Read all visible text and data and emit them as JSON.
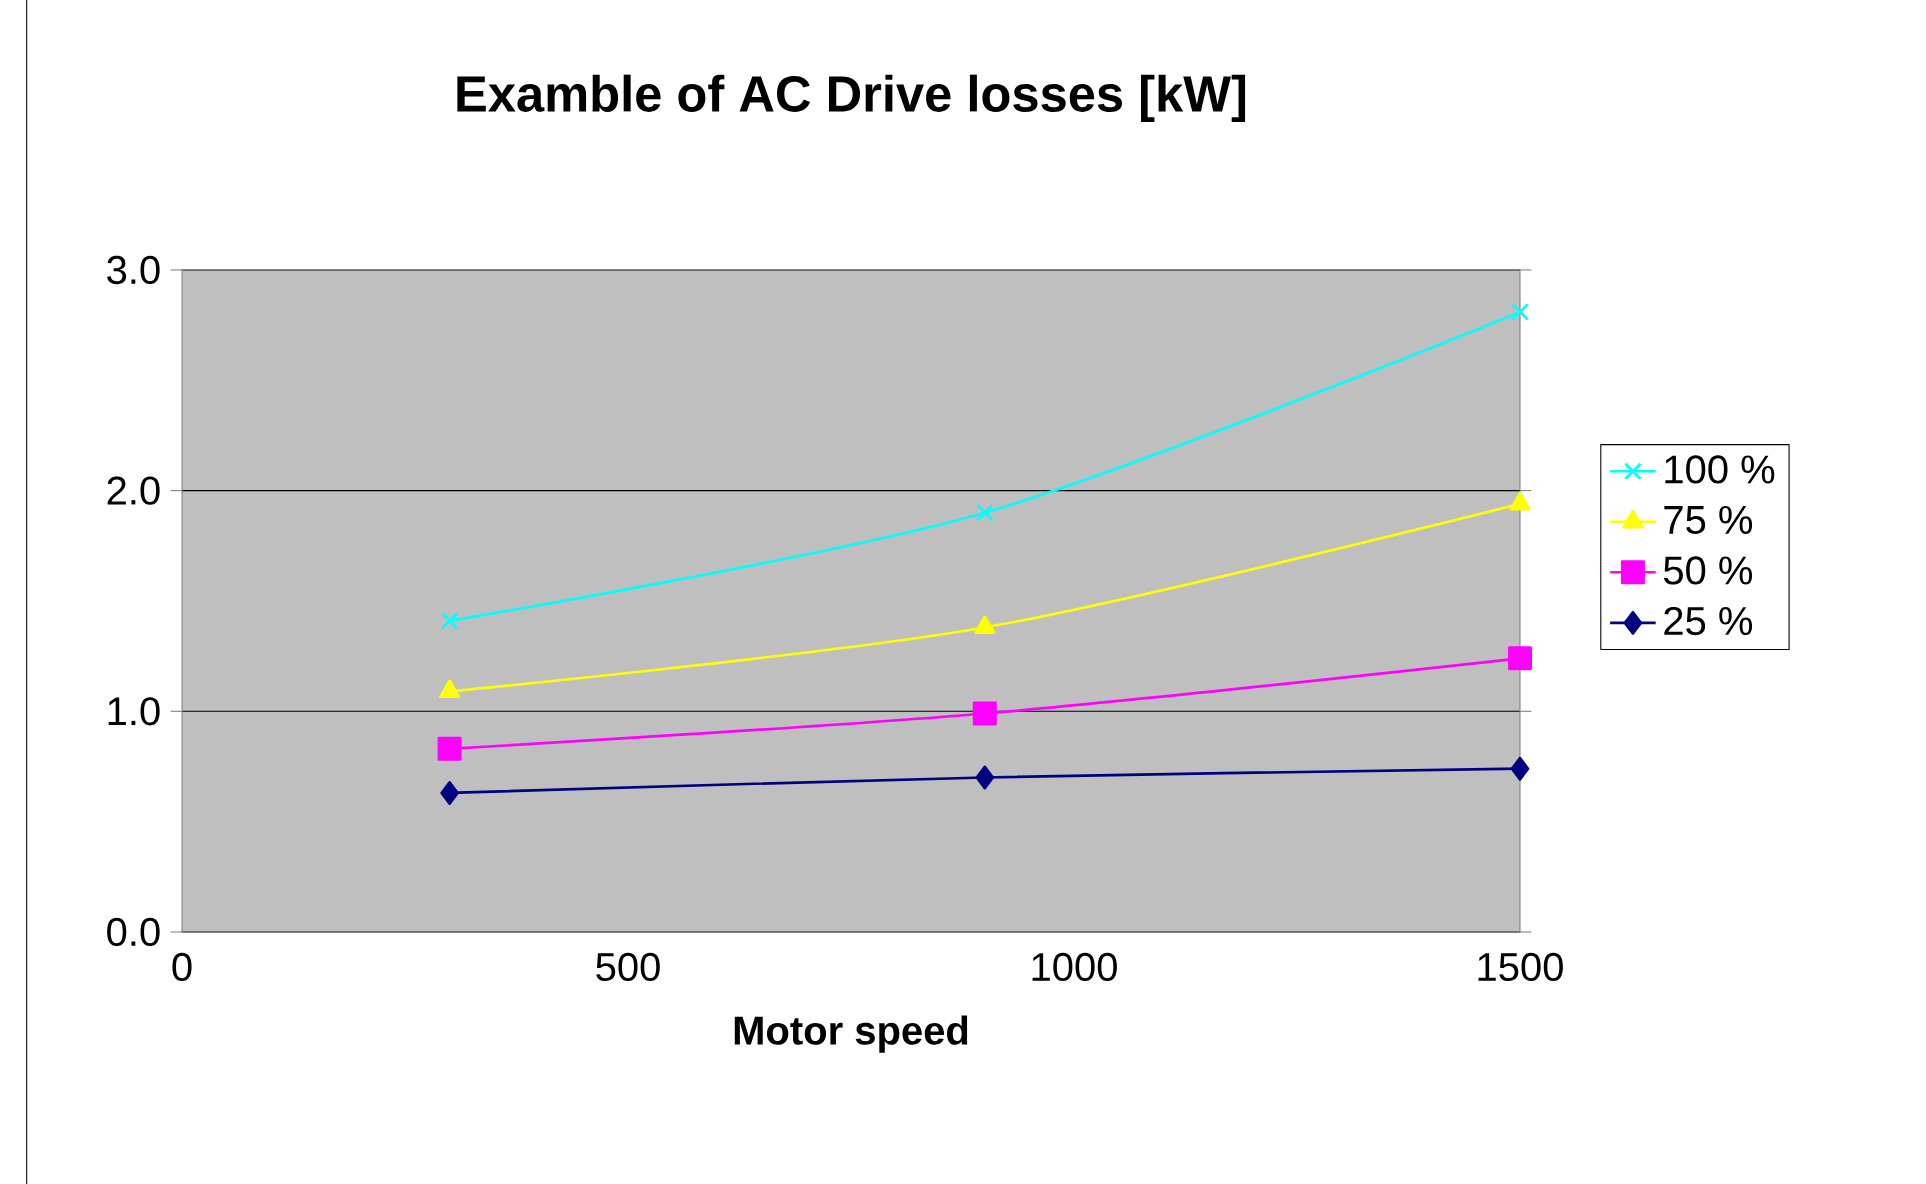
{
  "chart_data": {
    "type": "line",
    "title": "Examble of AC Drive losses [kW]",
    "xlabel": "Motor speed",
    "x": [
      300,
      900,
      1500
    ],
    "series": [
      {
        "name": "100 %",
        "color": "#00ffff",
        "marker": "cross",
        "values": [
          1.41,
          1.9,
          2.81
        ]
      },
      {
        "name": "75 %",
        "color": "#ffff00",
        "marker": "triangle",
        "values": [
          1.09,
          1.38,
          1.94
        ]
      },
      {
        "name": "50 %",
        "color": "#ff00ff",
        "marker": "square",
        "values": [
          0.83,
          0.99,
          1.24
        ]
      },
      {
        "name": "25 %",
        "color": "#000080",
        "marker": "diamond",
        "values": [
          0.63,
          0.7,
          0.74
        ]
      }
    ],
    "xlim": [
      0,
      1500
    ],
    "ylim": [
      0,
      3
    ],
    "xticks": [
      0,
      500,
      1000,
      1500
    ],
    "yticks": [
      {
        "value": 0,
        "label": "0.0"
      },
      {
        "value": 1,
        "label": "1.0"
      },
      {
        "value": 2,
        "label": "2.0"
      },
      {
        "value": 3,
        "label": "3.0"
      }
    ],
    "grid": "y",
    "legend": "right",
    "line_style": "solid"
  }
}
